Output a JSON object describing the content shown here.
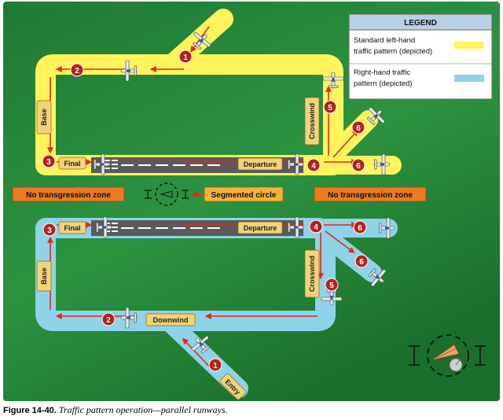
{
  "legend": {
    "title": "LEGEND",
    "left_hand_line1": "Standard left-hand",
    "left_hand_line2": "traffic pattern (depicted)",
    "left_hand_color": "#fff45c",
    "right_hand_line1": "Right-hand traffic",
    "right_hand_line2": "pattern (depicted)",
    "right_hand_color": "#8fd3e8"
  },
  "labels": {
    "base": "Base",
    "crosswind": "Crosswind",
    "final": "Final",
    "departure": "Departure",
    "downwind": "Downwind",
    "entry": "Entry",
    "no_transgression_zone": "No transgression zone",
    "segmented_circle": "Segmented circle"
  },
  "markers": [
    "1",
    "2",
    "3",
    "4",
    "5",
    "6"
  ],
  "caption": {
    "figure": "Figure 14-40.",
    "title": "Traffic pattern operation—parallel runways."
  },
  "colors": {
    "background": "#2a8a3a",
    "arrow": "#e0281c",
    "marker": "#b5221a",
    "label_box": "#f3d27a",
    "zone_box": "#ec7a22",
    "runway": "#555555"
  }
}
